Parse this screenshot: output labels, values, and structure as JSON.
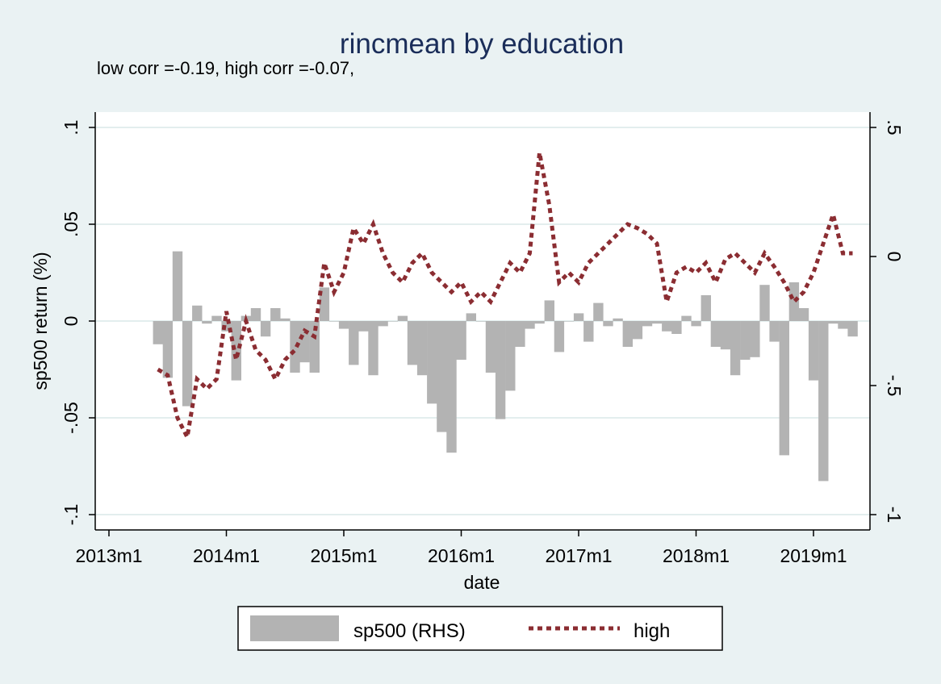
{
  "chart_data": {
    "type": "bar+line",
    "title": "rincmean by education",
    "subtitle": "low corr =-0.19, high corr =-0.07,",
    "xlabel": "date",
    "ylabel": "sp500 return (%)",
    "x_ticks": [
      "2013m1",
      "2014m1",
      "2015m1",
      "2016m1",
      "2017m1",
      "2018m1",
      "2019m1"
    ],
    "y_left_ticks": [
      ".1",
      ".05",
      "0",
      "-.05",
      "-.1"
    ],
    "y_right_ticks": [
      ".5",
      "0",
      "-.5",
      "-1"
    ],
    "ylim_left": [
      -0.1,
      0.1
    ],
    "ylim_right": [
      -1,
      0.5
    ],
    "grid": true,
    "legend_position": "bottom",
    "x": [
      "2013m6",
      "2013m7",
      "2013m8",
      "2013m9",
      "2013m10",
      "2013m11",
      "2013m12",
      "2014m1",
      "2014m2",
      "2014m3",
      "2014m4",
      "2014m5",
      "2014m6",
      "2014m7",
      "2014m8",
      "2014m9",
      "2014m10",
      "2014m11",
      "2014m12",
      "2015m1",
      "2015m2",
      "2015m3",
      "2015m4",
      "2015m5",
      "2015m6",
      "2015m7",
      "2015m8",
      "2015m9",
      "2015m10",
      "2015m11",
      "2015m12",
      "2016m1",
      "2016m2",
      "2016m3",
      "2016m4",
      "2016m5",
      "2016m6",
      "2016m7",
      "2016m8",
      "2016m9",
      "2016m10",
      "2016m11",
      "2016m12",
      "2017m1",
      "2017m2",
      "2017m3",
      "2017m4",
      "2017m5",
      "2017m6",
      "2017m7",
      "2017m8",
      "2017m9",
      "2017m10",
      "2017m11",
      "2017m12",
      "2018m1",
      "2018m2",
      "2018m3",
      "2018m4",
      "2018m5",
      "2018m6",
      "2018m7",
      "2018m8",
      "2018m9",
      "2018m10",
      "2018m11",
      "2018m12",
      "2019m1",
      "2019m2",
      "2019m3",
      "2019m4",
      "2019m5"
    ],
    "series": [
      {
        "name": "sp500 (RHS)",
        "type": "bar",
        "axis": "right",
        "color": "#b3b3b3",
        "values": [
          -0.34,
          -0.47,
          0.02,
          -0.58,
          -0.19,
          -0.26,
          -0.23,
          -0.29,
          -0.48,
          -0.23,
          -0.2,
          -0.31,
          -0.2,
          -0.24,
          -0.45,
          -0.41,
          -0.45,
          -0.12,
          -0.25,
          -0.28,
          -0.42,
          -0.29,
          -0.46,
          -0.27,
          -0.25,
          -0.23,
          -0.42,
          -0.46,
          -0.57,
          -0.68,
          -0.76,
          -0.4,
          -0.22,
          -0.25,
          -0.45,
          -0.63,
          -0.52,
          -0.35,
          -0.28,
          -0.26,
          -0.17,
          -0.37,
          -0.25,
          -0.22,
          -0.33,
          -0.18,
          -0.27,
          -0.24,
          -0.35,
          -0.32,
          -0.27,
          -0.26,
          -0.29,
          -0.3,
          -0.23,
          -0.27,
          -0.15,
          -0.35,
          -0.36,
          -0.46,
          -0.4,
          -0.39,
          -0.11,
          -0.33,
          -0.77,
          -0.1,
          -0.2,
          -0.48,
          -0.87,
          -0.26,
          -0.28,
          -0.31
        ]
      },
      {
        "name": "high",
        "type": "line",
        "axis": "left",
        "color": "#8b2d32",
        "values": [
          -0.025,
          -0.028,
          -0.05,
          -0.06,
          -0.03,
          -0.035,
          -0.03,
          0.005,
          -0.02,
          0.0,
          -0.015,
          -0.02,
          -0.03,
          -0.02,
          -0.015,
          -0.005,
          -0.008,
          0.03,
          0.015,
          0.025,
          0.048,
          0.04,
          0.05,
          0.035,
          0.025,
          0.02,
          0.03,
          0.035,
          0.025,
          0.02,
          0.015,
          0.02,
          0.01,
          0.015,
          0.01,
          0.02,
          0.03,
          0.025,
          0.035,
          0.087,
          0.06,
          0.02,
          0.025,
          0.02,
          0.03,
          0.035,
          0.04,
          0.045,
          0.05,
          0.048,
          0.045,
          0.04,
          0.01,
          0.025,
          0.028,
          0.025,
          0.03,
          0.02,
          0.032,
          0.035,
          0.03,
          0.025,
          0.035,
          0.028,
          0.02,
          0.01,
          0.015,
          0.025,
          0.04,
          0.055,
          0.035,
          0.035
        ]
      }
    ]
  }
}
